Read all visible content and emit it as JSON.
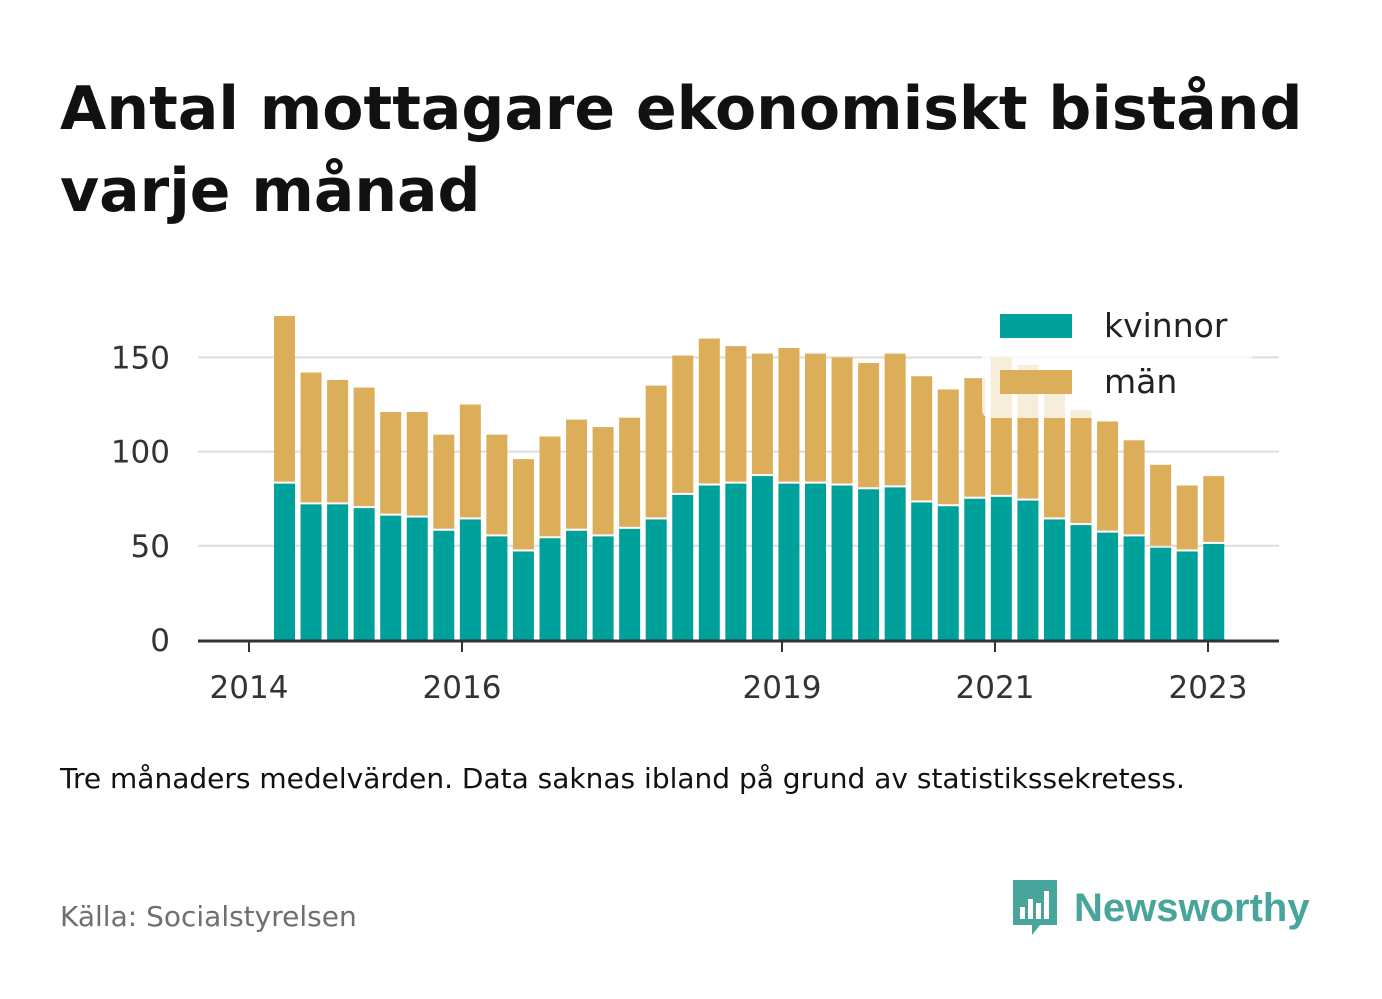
{
  "title": "Antal mottagare ekonomiskt bistånd varje månad",
  "note": "Tre månaders medelvärden. Data saknas ibland på grund av statistikssekretess.",
  "source": "Källa: Socialstyrelsen",
  "brand": {
    "name": "Newsworthy",
    "logo_icon": "newsworthy-bar-chart-speech-bubble-icon",
    "color": "#47a59b"
  },
  "colors": {
    "kvinnor": "#00a19a",
    "man": "#dcae5a",
    "grid": "#dddddd",
    "axis": "#333333"
  },
  "chart_data": {
    "type": "bar",
    "stacked": true,
    "x_ticks": [
      "2014",
      "2016",
      "2019",
      "2021",
      "2023"
    ],
    "y_ticks": [
      0,
      50,
      100,
      150
    ],
    "ylim": [
      0,
      175
    ],
    "grid": true,
    "legend_position": "top-right",
    "series": [
      {
        "name": "kvinnor",
        "values": [
          83,
          72,
          72,
          70,
          66,
          65,
          58,
          64,
          55,
          47,
          54,
          58,
          55,
          59,
          64,
          77,
          82,
          83,
          87,
          83,
          83,
          82,
          80,
          81,
          73,
          71,
          75,
          76,
          74,
          64,
          61,
          57,
          55,
          49,
          47,
          51
        ]
      },
      {
        "name": "män",
        "values": [
          89,
          70,
          66,
          64,
          55,
          56,
          51,
          61,
          54,
          49,
          54,
          59,
          58,
          59,
          71,
          74,
          78,
          73,
          65,
          72,
          69,
          68,
          67,
          71,
          67,
          62,
          64,
          74,
          72,
          67,
          61,
          59,
          51,
          44,
          35,
          36
        ]
      }
    ]
  }
}
